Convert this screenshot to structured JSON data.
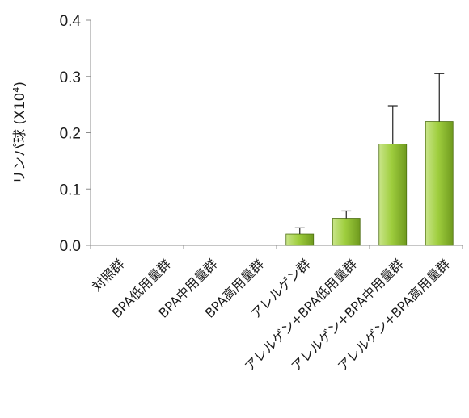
{
  "chart_data": {
    "type": "bar",
    "categories": [
      "対照群",
      "BPA低用量群",
      "BPA中用量群",
      "BPA高用量群",
      "アレルゲン群",
      "アレルゲン+BPA低用量群",
      "アレルゲン+BPA中用量群",
      "アレルゲン+BPA高用量群"
    ],
    "values": [
      0,
      0,
      0,
      0,
      0.02,
      0.048,
      0.18,
      0.22
    ],
    "errors": [
      0,
      0,
      0,
      0,
      0.011,
      0.013,
      0.068,
      0.085
    ],
    "ylabel": {
      "text": "リンパ球 (X10",
      "sup": "4",
      "close": ")"
    },
    "ylim": [
      0,
      0.4
    ],
    "yticks": [
      "0.0",
      "0.1",
      "0.2",
      "0.3",
      "0.4"
    ],
    "grid": false,
    "legend": "none",
    "colors": {
      "bar_top": "#c9e58a",
      "bar_mid": "#9fce3e",
      "bar_bottom": "#6f9a1e",
      "bar_edge": "#4d6e12"
    }
  }
}
